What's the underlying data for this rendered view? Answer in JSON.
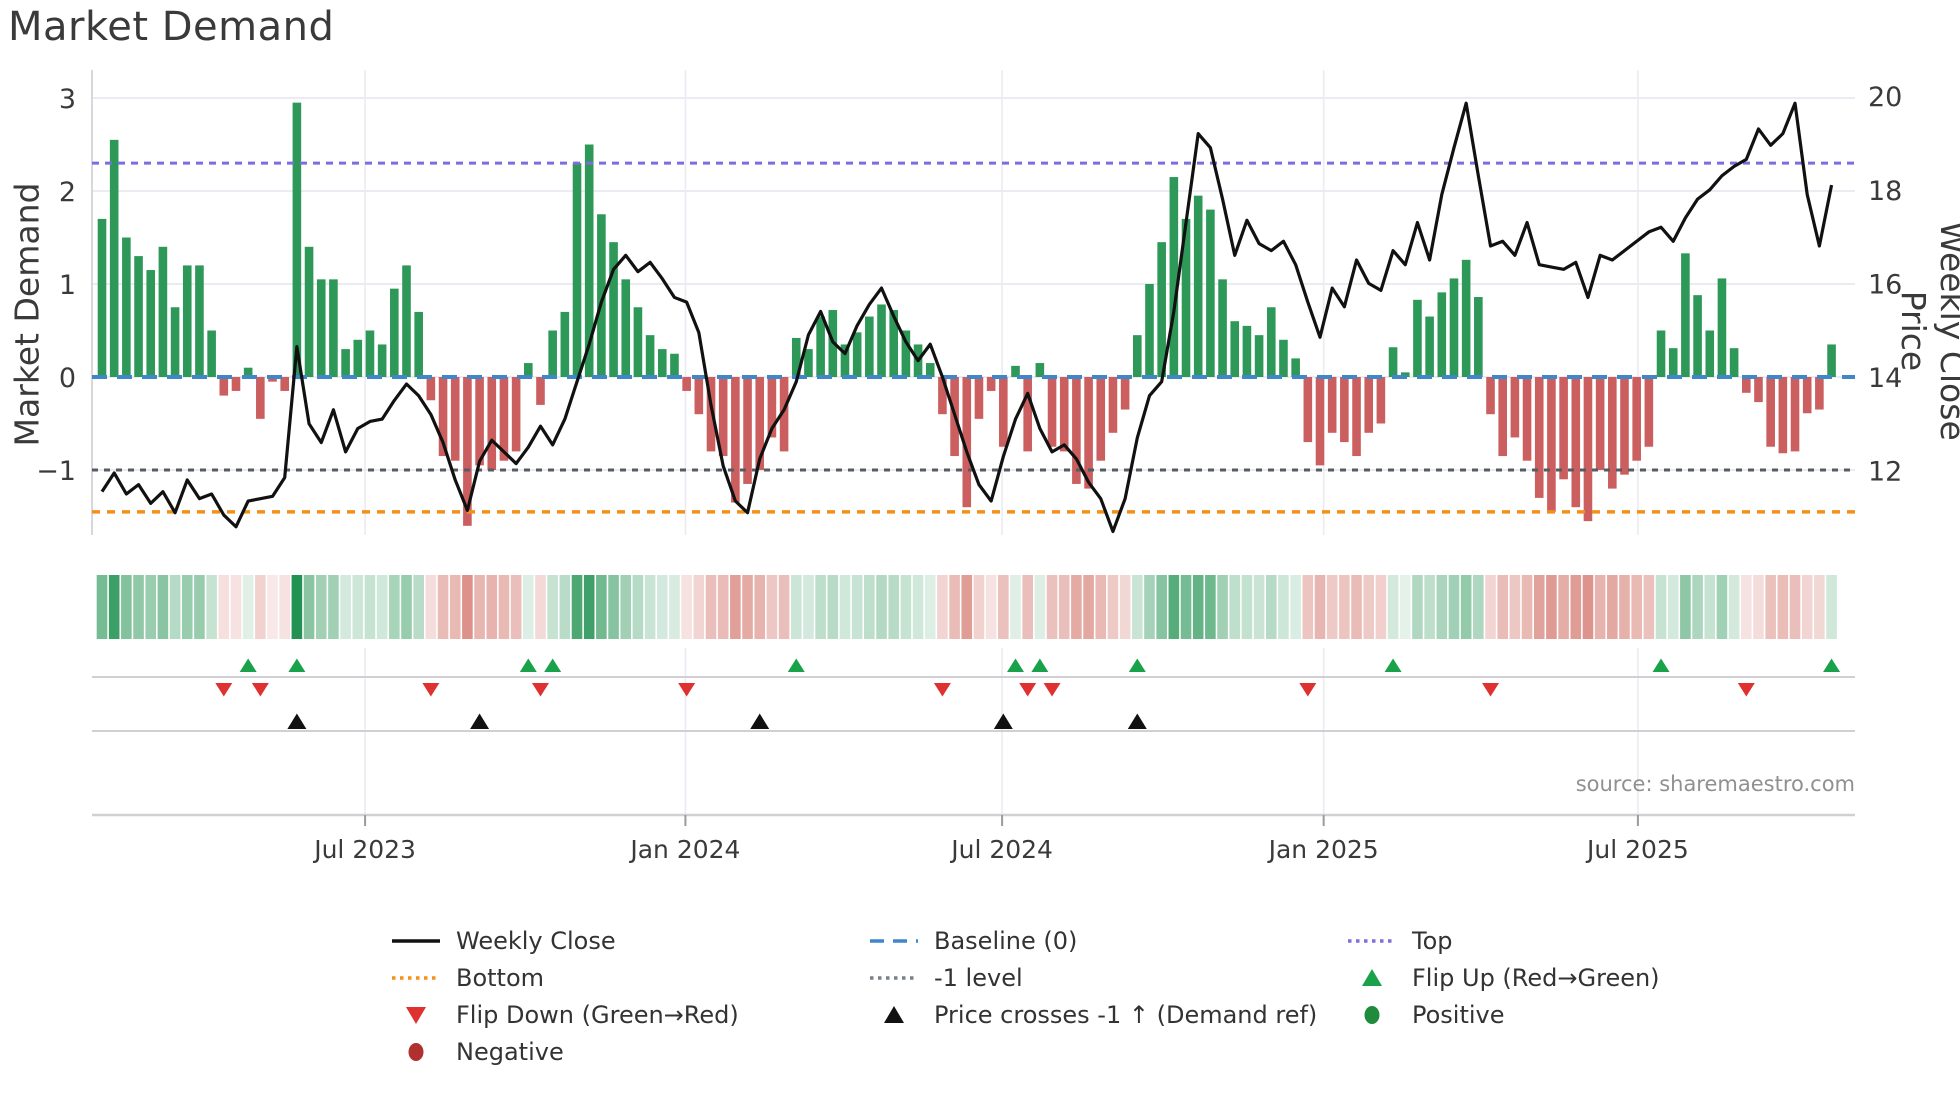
{
  "title": "Market Demand",
  "source_text": "source: sharemaestro.com",
  "axes": {
    "left_label": "Market Demand",
    "right_label": "Weekly Close Price",
    "left_ticks": [
      "3",
      "2",
      "1",
      "0",
      "−1"
    ],
    "left_tick_values": [
      3,
      2,
      1,
      0,
      -1
    ],
    "right_ticks": [
      "20",
      "18",
      "16",
      "14",
      "12"
    ],
    "right_tick_values": [
      20,
      18,
      16,
      14,
      12
    ],
    "x_tick_labels": [
      "Jul 2023",
      "Jan 2024",
      "Jul 2024",
      "Jan 2025",
      "Jul 2025"
    ],
    "x_tick_weeks": [
      21.6,
      47.9,
      73.9,
      100.3,
      126.1
    ]
  },
  "chart_data": {
    "type": "bar+line",
    "title": "Market Demand",
    "x_unit": "weekly, Feb 2023 - Oct 2025",
    "ylim_left": [
      -1.7,
      3.3
    ],
    "ylim_right": [
      11.0,
      20.6
    ],
    "grid": "on",
    "levels": {
      "top": 2.3,
      "baseline": 0,
      "minus_one": -1,
      "bottom": -1.45
    },
    "series": [
      {
        "name": "Market Demand (bars)",
        "values": [
          1.7,
          2.55,
          1.5,
          1.3,
          1.15,
          1.4,
          0.75,
          1.2,
          1.2,
          0.5,
          -0.2,
          -0.15,
          0.1,
          -0.45,
          -0.05,
          -0.15,
          2.95,
          1.4,
          1.05,
          1.05,
          0.3,
          0.4,
          0.5,
          0.35,
          0.95,
          1.2,
          0.7,
          -0.25,
          -0.85,
          -0.9,
          -1.6,
          -0.95,
          -1.0,
          -0.9,
          -0.8,
          0.15,
          -0.3,
          0.5,
          0.7,
          2.3,
          2.5,
          1.75,
          1.45,
          1.05,
          0.75,
          0.45,
          0.3,
          0.25,
          -0.15,
          -0.4,
          -0.8,
          -0.85,
          -1.35,
          -1.15,
          -1.0,
          -0.65,
          -0.8,
          0.42,
          0.3,
          0.65,
          0.72,
          0.35,
          0.48,
          0.65,
          0.78,
          0.72,
          0.5,
          0.35,
          0.15,
          -0.4,
          -0.85,
          -1.4,
          -0.45,
          -0.15,
          -0.75,
          0.12,
          -0.8,
          0.15,
          -0.75,
          -0.8,
          -1.15,
          -1.2,
          -0.9,
          -0.6,
          -0.35,
          0.45,
          1.0,
          1.45,
          2.15,
          1.7,
          1.95,
          1.8,
          1.05,
          0.6,
          0.55,
          0.45,
          0.75,
          0.4,
          0.2,
          -0.7,
          -0.95,
          -0.6,
          -0.7,
          -0.85,
          -0.6,
          -0.5,
          0.32,
          0.05,
          0.83,
          0.65,
          0.91,
          1.06,
          1.26,
          0.86,
          -0.4,
          -0.85,
          -0.65,
          -0.9,
          -1.3,
          -1.45,
          -1.1,
          -1.4,
          -1.55,
          -1.0,
          -1.2,
          -1.05,
          -0.9,
          -0.75,
          0.5,
          0.31,
          1.33,
          0.88,
          0.5,
          1.06,
          0.31,
          -0.17,
          -0.27,
          -0.75,
          -0.82,
          -0.8,
          -0.39,
          -0.35,
          0.35
        ]
      },
      {
        "name": "Weekly Close (line)",
        "values": [
          11.55,
          11.95,
          11.5,
          11.7,
          11.3,
          11.55,
          11.1,
          11.8,
          11.4,
          11.5,
          11.05,
          10.8,
          11.35,
          11.4,
          11.45,
          11.85,
          14.65,
          13.0,
          12.6,
          13.3,
          12.4,
          12.9,
          13.05,
          13.1,
          13.5,
          13.85,
          13.6,
          13.2,
          12.6,
          11.8,
          11.15,
          12.2,
          12.65,
          12.4,
          12.15,
          12.5,
          12.95,
          12.55,
          13.1,
          13.9,
          14.7,
          15.6,
          16.3,
          16.6,
          16.25,
          16.45,
          16.1,
          15.7,
          15.6,
          14.95,
          13.4,
          12.1,
          11.35,
          11.1,
          12.25,
          12.9,
          13.3,
          13.9,
          14.9,
          15.4,
          14.75,
          14.5,
          15.1,
          15.55,
          15.9,
          15.3,
          14.75,
          14.35,
          14.7,
          14.0,
          13.2,
          12.4,
          11.7,
          11.35,
          12.3,
          13.1,
          13.65,
          12.9,
          12.4,
          12.55,
          12.25,
          11.75,
          11.4,
          10.7,
          11.4,
          12.7,
          13.6,
          13.9,
          15.4,
          17.3,
          19.2,
          18.9,
          17.8,
          16.6,
          17.35,
          16.85,
          16.7,
          16.9,
          16.4,
          15.6,
          14.85,
          15.9,
          15.5,
          16.5,
          16.0,
          15.85,
          16.7,
          16.4,
          17.3,
          16.5,
          17.9,
          18.9,
          19.85,
          18.3,
          16.8,
          16.9,
          16.6,
          17.3,
          16.4,
          16.35,
          16.3,
          16.45,
          15.7,
          16.6,
          16.5,
          16.7,
          16.9,
          17.1,
          17.2,
          16.9,
          17.4,
          17.8,
          18.0,
          18.3,
          18.5,
          18.65,
          19.3,
          18.95,
          19.2,
          19.85,
          17.9,
          16.8,
          18.1
        ]
      }
    ],
    "markers": {
      "flip_up_weeks": [
        12,
        16,
        35,
        37,
        57,
        75,
        77,
        85,
        106,
        128,
        142
      ],
      "flip_down_weeks": [
        10,
        13,
        27,
        36,
        48,
        69,
        76,
        78,
        99,
        114,
        135
      ],
      "price_cross_weeks": [
        16,
        31,
        54,
        74,
        85
      ]
    },
    "heatmap": "same weekly demand values rendered as green/red intensity strip, normalized to +/-3"
  },
  "legend": {
    "items": [
      {
        "label": "Weekly Close",
        "swatch": "line",
        "color": "#111111"
      },
      {
        "label": "Baseline (0)",
        "swatch": "dash",
        "color": "#3f87c9"
      },
      {
        "label": "Top",
        "swatch": "dots",
        "color": "#7b6fe0"
      },
      {
        "label": "Bottom",
        "swatch": "dots",
        "color": "#f39019"
      },
      {
        "label": "-1 level",
        "swatch": "dots",
        "color": "#7a8087"
      },
      {
        "label": "Flip Up (Red→Green)",
        "swatch": "triangle-up",
        "color": "#1aa24b"
      },
      {
        "label": "Flip Down (Green→Red)",
        "swatch": "triangle-down",
        "color": "#e03131"
      },
      {
        "label": "Price crosses -1 ↑ (Demand ref)",
        "swatch": "triangle-up",
        "color": "#111111"
      },
      {
        "label": "Positive",
        "swatch": "circle",
        "color": "#1e8b3d"
      },
      {
        "label": "Negative",
        "swatch": "circle",
        "color": "#b03030"
      }
    ]
  },
  "colors": {
    "bar_positive": "#2e9858",
    "bar_negative": "#cb5f5f",
    "price_line": "#111111",
    "baseline": "#3f87c9",
    "top_level": "#7b6fe0",
    "bottom_level": "#f39019",
    "minus_one_level": "#565c63",
    "flip_up": "#1aa24b",
    "flip_down": "#e03131",
    "price_cross": "#111111",
    "heat_pos_base": "#128a45",
    "heat_neg_base": "#c0392b",
    "grid": "#ebebf1",
    "spine": "#cfcfd4",
    "text": "#3a3a3a",
    "muted": "#909090"
  }
}
